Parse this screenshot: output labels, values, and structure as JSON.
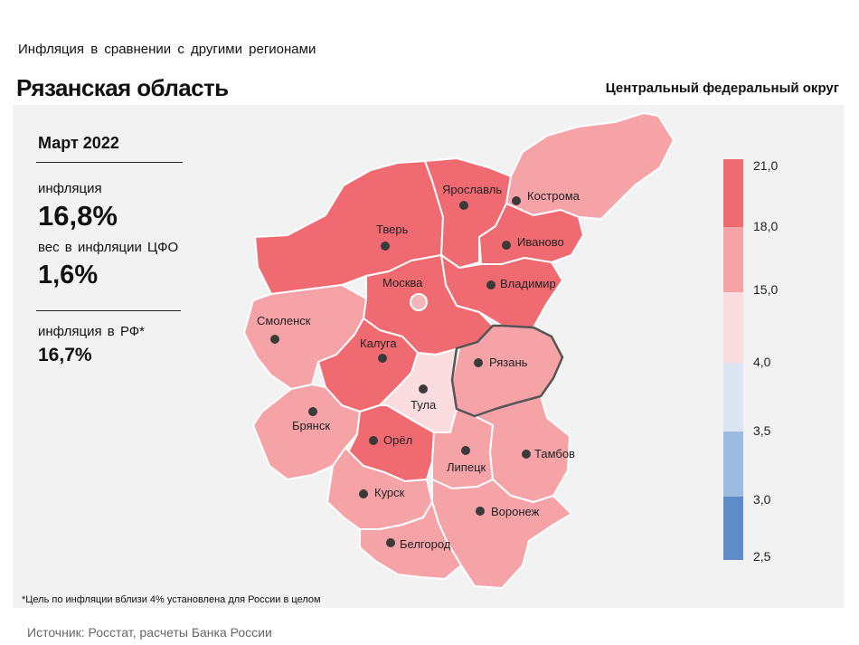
{
  "subtitle": "Инфляция в сравнении с другими регионами",
  "title": "Рязанская область",
  "district": "Центральный федеральный округ",
  "stats": {
    "period": "Март 2022",
    "inflation_label": "инфляция",
    "inflation_value": "16,8%",
    "weight_label": "вес в инфляции ЦФО",
    "weight_value": "1,6%",
    "rf_label": "инфляция в РФ*",
    "rf_value": "16,7%"
  },
  "regions": {
    "tver": "Тверь",
    "yaroslavl": "Ярославль",
    "kostroma": "Кострома",
    "ivanovo": "Иваново",
    "vladimir": "Владимир",
    "moscow": "Москва",
    "smolensk": "Смоленск",
    "kaluga": "Калуга",
    "ryazan": "Рязань",
    "tula": "Тула",
    "bryansk": "Брянск",
    "orel": "Орёл",
    "lipetsk": "Липецк",
    "tambov": "Тамбов",
    "kursk": "Курск",
    "voronezh": "Воронеж",
    "belgorod": "Белгород"
  },
  "colors": {
    "bin_18_21": "#f06a72",
    "bin_15_18": "#f6a3a8",
    "bin_4_15": "#fbdde0",
    "bin_3_5_4": "#dbe5f4",
    "bin_3_3_5": "#9dbbe0",
    "bin_2_5_3": "#5d8cc8"
  },
  "legend": {
    "ticks": [
      "21,0",
      "18,0",
      "15,0",
      "4,0",
      "3,5",
      "3,0",
      "2,5"
    ]
  },
  "note": "*Цель по инфляции вблизи 4% установлена для России в целом",
  "source": "Источник: Росстат, расчеты Банка России"
}
